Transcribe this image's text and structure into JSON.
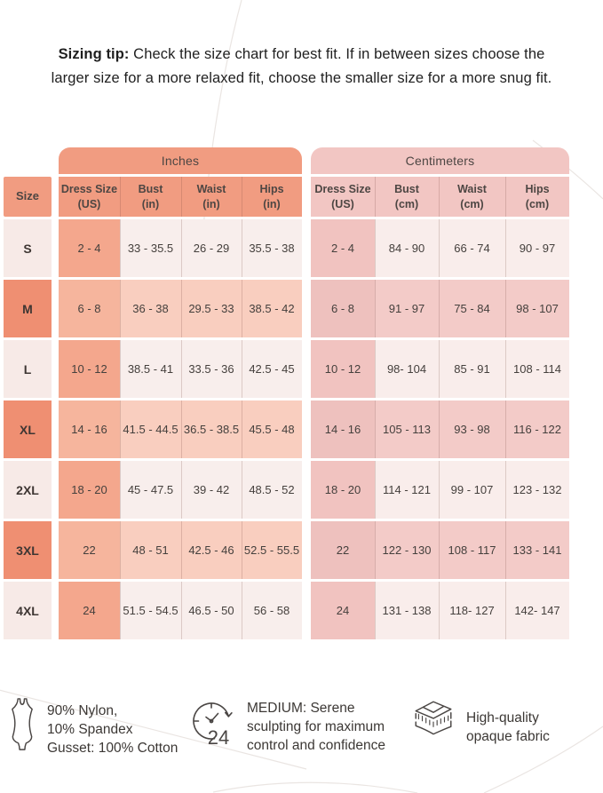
{
  "tip": {
    "bold": "Sizing tip:",
    "line1": " Check the size chart for best fit. If in between sizes choose the",
    "line2": "larger size for a more relaxed fit, choose the smaller size for a more snug fit."
  },
  "table": {
    "size_header": "Size",
    "groups": [
      {
        "title": "Inches",
        "headers": [
          [
            "Dress Size",
            "(US)"
          ],
          [
            "Bust",
            "(in)"
          ],
          [
            "Waist",
            "(in)"
          ],
          [
            "Hips",
            "(in)"
          ]
        ]
      },
      {
        "title": "Centimeters",
        "headers": [
          [
            "Dress Size",
            "(US)"
          ],
          [
            "Bust",
            "(cm)"
          ],
          [
            "Waist",
            "(cm)"
          ],
          [
            "Hips",
            "(cm)"
          ]
        ]
      }
    ],
    "rows": [
      {
        "size": "S",
        "in": [
          "2 - 4",
          "33 - 35.5",
          "26 - 29",
          "35.5 - 38"
        ],
        "cm": [
          "2 - 4",
          "84 - 90",
          "66 - 74",
          "90 - 97"
        ]
      },
      {
        "size": "M",
        "in": [
          "6 - 8",
          "36 - 38",
          "29.5 - 33",
          "38.5 - 42"
        ],
        "cm": [
          "6 - 8",
          "91 - 97",
          "75 - 84",
          "98 - 107"
        ]
      },
      {
        "size": "L",
        "in": [
          "10 - 12",
          "38.5 - 41",
          "33.5 - 36",
          "42.5 - 45"
        ],
        "cm": [
          "10 - 12",
          "98- 104",
          "85 - 91",
          "108 - 114"
        ]
      },
      {
        "size": "XL",
        "in": [
          "14 - 16",
          "41.5 - 44.5",
          "36.5 - 38.5",
          "45.5 - 48"
        ],
        "cm": [
          "14 - 16",
          "105 - 113",
          "93 - 98",
          "116 - 122"
        ]
      },
      {
        "size": "2XL",
        "in": [
          "18 - 20",
          "45 - 47.5",
          "39 - 42",
          "48.5 - 52"
        ],
        "cm": [
          "18 - 20",
          "114 - 121",
          "99 - 107",
          "123 - 132"
        ]
      },
      {
        "size": "3XL",
        "in": [
          "22",
          "48 - 51",
          "42.5 - 46",
          "52.5 - 55.5"
        ],
        "cm": [
          "22",
          "122 - 130",
          "108 - 117",
          "133 - 141"
        ]
      },
      {
        "size": "4XL",
        "in": [
          "24",
          "51.5 - 54.5",
          "46.5 - 50",
          "56 - 58"
        ],
        "cm": [
          "24",
          "131 - 138",
          "118- 127",
          "142- 147"
        ]
      }
    ]
  },
  "features": [
    {
      "icon": "bodysuit-icon",
      "lines": [
        "90% Nylon,",
        "10% Spandex",
        "Gusset: 100% Cotton"
      ]
    },
    {
      "icon": "clock-24-icon",
      "lines": [
        "MEDIUM: Serene",
        "sculpting for maximum",
        "control and confidence"
      ]
    },
    {
      "icon": "fabric-layers-icon",
      "lines": [
        "High-quality",
        "opaque fabric"
      ]
    }
  ],
  "clock_number": "24",
  "colors": {
    "inches_band": "#F19C81",
    "centimeters_band": "#F2C6C3",
    "size_row_dark": "#EF8F72",
    "inches_dress_odd": "#F4A78D",
    "inches_data_even": "#F9CEBF",
    "cm_data_even": "#F3CBC8",
    "light_row": "#F8EEEC",
    "text_dark": "#3E3633"
  },
  "chart_data": [
    {
      "type": "table",
      "title": "Inches",
      "columns": [
        "Size",
        "Dress Size (US)",
        "Bust (in)",
        "Waist (in)",
        "Hips (in)"
      ],
      "rows": [
        [
          "S",
          "2 - 4",
          "33 - 35.5",
          "26 - 29",
          "35.5 - 38"
        ],
        [
          "M",
          "6 - 8",
          "36 - 38",
          "29.5 - 33",
          "38.5 - 42"
        ],
        [
          "L",
          "10 - 12",
          "38.5 - 41",
          "33.5 - 36",
          "42.5 - 45"
        ],
        [
          "XL",
          "14 - 16",
          "41.5 - 44.5",
          "36.5 - 38.5",
          "45.5 - 48"
        ],
        [
          "2XL",
          "18 - 20",
          "45 - 47.5",
          "39 - 42",
          "48.5 - 52"
        ],
        [
          "3XL",
          "22",
          "48 - 51",
          "42.5 - 46",
          "52.5 - 55.5"
        ],
        [
          "4XL",
          "24",
          "51.5 - 54.5",
          "46.5 - 50",
          "56 - 58"
        ]
      ]
    },
    {
      "type": "table",
      "title": "Centimeters",
      "columns": [
        "Size",
        "Dress Size (US)",
        "Bust (cm)",
        "Waist (cm)",
        "Hips (cm)"
      ],
      "rows": [
        [
          "S",
          "2 - 4",
          "84 - 90",
          "66 - 74",
          "90 - 97"
        ],
        [
          "M",
          "6 - 8",
          "91 - 97",
          "75 - 84",
          "98 - 107"
        ],
        [
          "L",
          "10 - 12",
          "98- 104",
          "85 - 91",
          "108 - 114"
        ],
        [
          "XL",
          "14 - 16",
          "105 - 113",
          "93 - 98",
          "116 - 122"
        ],
        [
          "2XL",
          "18 - 20",
          "114 - 121",
          "99 - 107",
          "123 - 132"
        ],
        [
          "3XL",
          "22",
          "122 - 130",
          "108 - 117",
          "133 - 141"
        ],
        [
          "4XL",
          "24",
          "131 - 138",
          "118- 127",
          "142- 147"
        ]
      ]
    }
  ]
}
